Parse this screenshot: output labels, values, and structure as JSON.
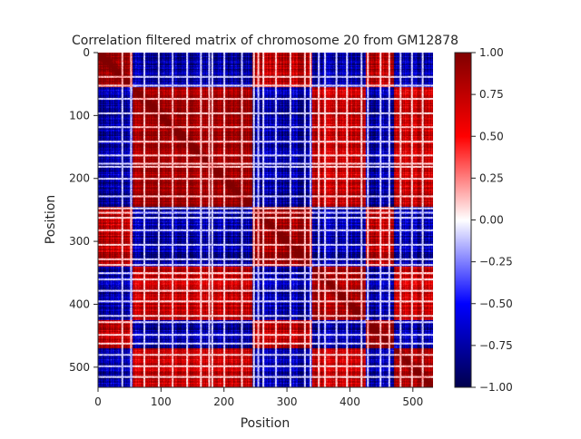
{
  "chart_data": {
    "type": "heatmap",
    "title": "Correlation filtered matrix of chromosome 20 from GM12878",
    "xlabel": "Position",
    "ylabel": "Position",
    "xlim": [
      0,
      532
    ],
    "ylim": [
      532,
      0
    ],
    "x_ticks": [
      {
        "value": 0,
        "label": "0"
      },
      {
        "value": 100,
        "label": "100"
      },
      {
        "value": 200,
        "label": "200"
      },
      {
        "value": 300,
        "label": "300"
      },
      {
        "value": 400,
        "label": "400"
      },
      {
        "value": 500,
        "label": "500"
      }
    ],
    "y_ticks": [
      {
        "value": 0,
        "label": "0"
      },
      {
        "value": 100,
        "label": "100"
      },
      {
        "value": 200,
        "label": "200"
      },
      {
        "value": 300,
        "label": "300"
      },
      {
        "value": 400,
        "label": "400"
      },
      {
        "value": 500,
        "label": "500"
      }
    ],
    "colormap": "seismic",
    "colormap_stops": [
      "#00004c",
      "#0000ff",
      "#ffffff",
      "#ff0000",
      "#800000"
    ],
    "colorbar": {
      "vmin": -1.0,
      "vmax": 1.0,
      "ticks": [
        {
          "value": 1.0,
          "label": "1.00"
        },
        {
          "value": 0.75,
          "label": "0.75"
        },
        {
          "value": 0.5,
          "label": "0.50"
        },
        {
          "value": 0.25,
          "label": "0.25"
        },
        {
          "value": 0.0,
          "label": "0.00"
        },
        {
          "value": -0.25,
          "label": "−0.25"
        },
        {
          "value": -0.5,
          "label": "−0.50"
        },
        {
          "value": -0.75,
          "label": "−0.75"
        },
        {
          "value": -1.0,
          "label": "−1.00"
        }
      ]
    },
    "compartment_blocks": [
      {
        "start": 0,
        "end": 55,
        "sign": 1
      },
      {
        "start": 55,
        "end": 245,
        "sign": -1
      },
      {
        "start": 245,
        "end": 340,
        "sign": 1
      },
      {
        "start": 340,
        "end": 425,
        "sign": -1
      },
      {
        "start": 425,
        "end": 470,
        "sign": 1
      },
      {
        "start": 470,
        "end": 532,
        "sign": -1
      }
    ],
    "stripe_positions": [
      38,
      52,
      73,
      96,
      118,
      141,
      163,
      176,
      181,
      200,
      228,
      247,
      254,
      262,
      282,
      305,
      328,
      337,
      350,
      360,
      378,
      395,
      418,
      428,
      448,
      462,
      480,
      498,
      515
    ]
  }
}
